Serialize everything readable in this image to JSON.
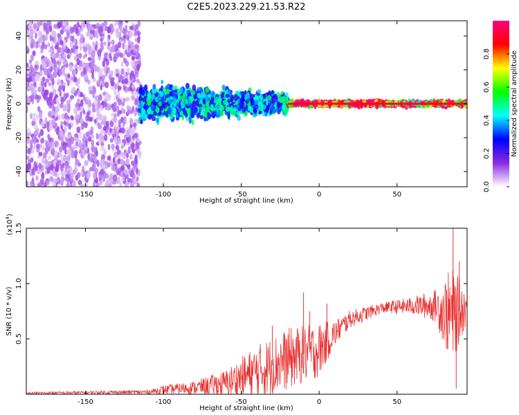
{
  "title": "C2E5.2023.229.21.53.R22",
  "chart_data": [
    {
      "type": "heatmap",
      "xlabel": "Height of straight line (km)",
      "ylabel": "Frequency (Hz)",
      "xlim": [
        -188,
        95
      ],
      "ylim": [
        -49,
        49
      ],
      "xticks": [
        -150,
        -100,
        -50,
        0,
        50
      ],
      "yticks": [
        -40,
        -20,
        0,
        20,
        40
      ],
      "colorbar": {
        "label": "Normalized spectral amplitude",
        "range": [
          0.0,
          1.0
        ],
        "ticks": [
          0.0,
          0.2,
          0.4,
          0.6,
          0.8
        ],
        "colors": [
          "#ffffff",
          "#8a2be2",
          "#0000ff",
          "#00ffff",
          "#00ff00",
          "#ffff00",
          "#ff0000",
          "#ff0080"
        ]
      },
      "regions": [
        {
          "name": "scattered noise",
          "x_range": [
            -188,
            -115
          ],
          "freq_range": [
            -49,
            49
          ],
          "amplitude": 0.1
        },
        {
          "name": "broad band",
          "x_range": [
            -115,
            -20
          ],
          "freq_range": [
            -8,
            8
          ],
          "amplitude": 0.4
        },
        {
          "name": "narrow line",
          "x_range": [
            -20,
            95
          ],
          "freq_range": [
            -1,
            1
          ],
          "amplitude": 0.9
        }
      ]
    },
    {
      "type": "line",
      "xlabel": "Height of straight line (km)",
      "ylabel": "SNR (10 * v/v)",
      "yscale_label": "(x10",
      "yscale_exp": "4",
      "xlim": [
        -188,
        95
      ],
      "ylim": [
        0,
        1.5
      ],
      "xticks": [
        -150,
        -100,
        -50,
        0,
        50
      ],
      "yticks": [
        0.5,
        1.0,
        1.5
      ],
      "color": "#e83030",
      "envelope": {
        "x": [
          -188,
          -110,
          -100,
          -80,
          -60,
          -40,
          -20,
          0,
          10,
          20,
          40,
          60,
          75,
          85,
          95
        ],
        "mean": [
          0.01,
          0.02,
          0.04,
          0.06,
          0.1,
          0.2,
          0.32,
          0.4,
          0.55,
          0.68,
          0.78,
          0.8,
          0.8,
          0.7,
          0.8
        ],
        "spread": [
          0.01,
          0.02,
          0.04,
          0.06,
          0.12,
          0.25,
          0.28,
          0.25,
          0.12,
          0.08,
          0.05,
          0.08,
          0.15,
          0.45,
          0.15
        ]
      },
      "peaks": [
        {
          "x": -30,
          "y": 0.62
        },
        {
          "x": -10,
          "y": 0.92
        },
        {
          "x": -6,
          "y": 0.75
        },
        {
          "x": 5,
          "y": 0.82
        },
        {
          "x": 86,
          "y": 1.5
        },
        {
          "x": 90,
          "y": 1.2
        },
        {
          "x": 88,
          "y": 0.05
        }
      ]
    }
  ]
}
